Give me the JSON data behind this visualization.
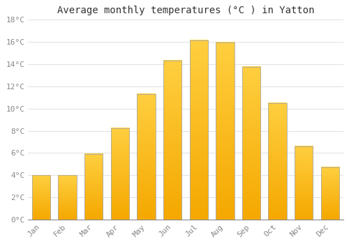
{
  "months": [
    "Jan",
    "Feb",
    "Mar",
    "Apr",
    "May",
    "Jun",
    "Jul",
    "Aug",
    "Sep",
    "Oct",
    "Nov",
    "Dec"
  ],
  "temperatures": [
    4.0,
    4.0,
    5.9,
    8.2,
    11.3,
    14.3,
    16.1,
    15.9,
    13.7,
    10.5,
    6.6,
    4.7
  ],
  "title": "Average monthly temperatures (°C ) in Yatton",
  "bar_color_bottom": "#F5A800",
  "bar_color_top": "#FFCF40",
  "bar_edge_color": "#AAAAAA",
  "background_color": "#FFFFFF",
  "grid_color": "#E0E0E0",
  "ylim": [
    0,
    18
  ],
  "yticks": [
    0,
    2,
    4,
    6,
    8,
    10,
    12,
    14,
    16,
    18
  ],
  "ytick_labels": [
    "0°C",
    "2°C",
    "4°C",
    "6°C",
    "8°C",
    "10°C",
    "12°C",
    "14°C",
    "16°C",
    "18°C"
  ],
  "tick_color": "#888888",
  "title_fontsize": 10,
  "tick_fontsize": 8,
  "font_family": "monospace",
  "bar_width": 0.7
}
